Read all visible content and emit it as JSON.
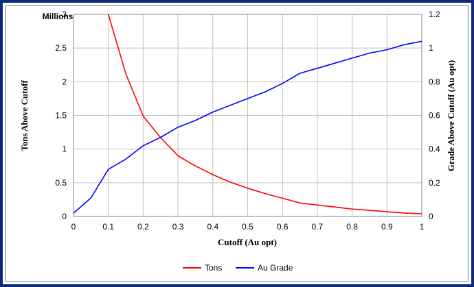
{
  "chart_data": {
    "type": "line",
    "xlabel": "Cutoff (Au opt)",
    "ylabel": "Tons Above Cutoff",
    "ylabel_unit": "Millions",
    "y2label": "Grade Above Cutoff (Au opt)",
    "xlim": [
      0,
      1
    ],
    "ylim": [
      0,
      3
    ],
    "y2lim": [
      0,
      1.2
    ],
    "xticks": [
      "0",
      "0.1",
      "0.2",
      "0.3",
      "0.4",
      "0.5",
      "0.6",
      "0.7",
      "0.8",
      "0.9",
      "1"
    ],
    "yticks": [
      "0",
      "0.5",
      "1",
      "1.5",
      "2",
      "2.5",
      "3"
    ],
    "y2ticks": [
      "0",
      "0.2",
      "0.4",
      "0.6",
      "0.8",
      "1",
      "1.2"
    ],
    "grid": true,
    "legend_position": "bottom",
    "series": [
      {
        "name": "Tons",
        "axis": "left",
        "color": "#ff0000",
        "x": [
          0.1,
          0.15,
          0.2,
          0.25,
          0.3,
          0.35,
          0.4,
          0.45,
          0.5,
          0.55,
          0.6,
          0.65,
          0.7,
          0.75,
          0.8,
          0.85,
          0.9,
          0.95,
          1.0
        ],
        "y": [
          3.0,
          2.12,
          1.49,
          1.17,
          0.9,
          0.75,
          0.62,
          0.51,
          0.42,
          0.34,
          0.27,
          0.2,
          0.17,
          0.14,
          0.11,
          0.09,
          0.07,
          0.05,
          0.04
        ]
      },
      {
        "name": "Au Grade",
        "axis": "right",
        "color": "#0000ff",
        "x": [
          0.0,
          0.05,
          0.1,
          0.15,
          0.2,
          0.25,
          0.3,
          0.35,
          0.4,
          0.45,
          0.5,
          0.55,
          0.6,
          0.65,
          0.7,
          0.75,
          0.8,
          0.85,
          0.9,
          0.95,
          1.0
        ],
        "y": [
          0.02,
          0.11,
          0.28,
          0.34,
          0.42,
          0.47,
          0.53,
          0.57,
          0.62,
          0.66,
          0.7,
          0.74,
          0.79,
          0.85,
          0.88,
          0.91,
          0.94,
          0.97,
          0.99,
          1.02,
          1.04
        ]
      }
    ]
  }
}
